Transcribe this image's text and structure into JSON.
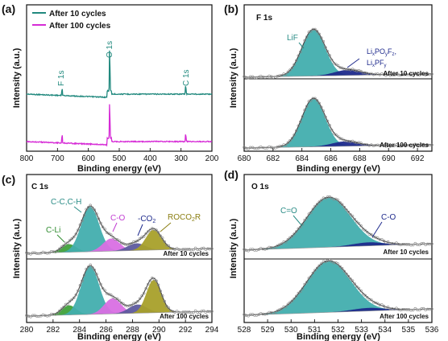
{
  "colors": {
    "teal": "#21897e",
    "magenta": "#d62bd6",
    "lif": "#42aeae",
    "pf": "#1e2a8c",
    "c_li": "#3fa13a",
    "cc": "#42aeae",
    "co": "#d96fe3",
    "co2": "#5d5a9e",
    "roco2r": "#a8a02a",
    "c_eq_o": "#42aeae",
    "c_o_blue": "#1e2a8c",
    "fit": "#444444",
    "raw": "#888888",
    "label_teal": "#2a8c86",
    "label_blue": "#1e2a8c",
    "label_green": "#2e8b2e",
    "label_magenta": "#c13bd2",
    "label_olive": "#8a7e12"
  },
  "chart_data": [
    {
      "panel": "(a)",
      "type": "line",
      "xlabel": "Binding energy (eV)",
      "ylabel": "Intensity (a.u.)",
      "xlim": [
        800,
        200
      ],
      "xticks": [
        800,
        700,
        600,
        500,
        400,
        300,
        200
      ],
      "legend_position": "top-left",
      "series": [
        {
          "name": "After 10 cycles",
          "color": "teal",
          "peaks": [
            {
              "label": "F 1s",
              "x": 685,
              "height": 0.1
            },
            {
              "label": "O 1s",
              "x": 531,
              "height": 0.62
            },
            {
              "label": "C 1s",
              "x": 285,
              "height": 0.12
            }
          ]
        },
        {
          "name": "After 100 cycles",
          "color": "magenta",
          "peaks": [
            {
              "label": "",
              "x": 685,
              "height": 0.12
            },
            {
              "label": "",
              "x": 531,
              "height": 0.55
            },
            {
              "label": "",
              "x": 285,
              "height": 0.11
            }
          ]
        }
      ],
      "peak_labels": [
        "F 1s",
        "O 1s",
        "C 1s"
      ]
    },
    {
      "panel": "(b)",
      "type": "area",
      "inset_title": "F 1s",
      "xlabel": "Binding energy (eV)",
      "ylabel": "Intensity (a.u.)",
      "xlim": [
        680,
        693
      ],
      "xticks": [
        680,
        682,
        684,
        686,
        688,
        690,
        692
      ],
      "spectra": [
        {
          "label": "After 10 cycles",
          "components": [
            {
              "name": "LiF",
              "center": 684.8,
              "fwhm": 1.9,
              "height": 1.0,
              "color": "lif"
            },
            {
              "name": "LixPOyFz, LixPFy",
              "center": 687.2,
              "fwhm": 2.2,
              "height": 0.12,
              "color": "pf"
            }
          ]
        },
        {
          "label": "After 100 cycles",
          "components": [
            {
              "name": "LiF",
              "center": 684.8,
              "fwhm": 1.9,
              "height": 1.0,
              "color": "lif"
            },
            {
              "name": "LixPOyFz, LixPFy",
              "center": 687.0,
              "fwhm": 2.2,
              "height": 0.1,
              "color": "pf"
            }
          ]
        }
      ]
    },
    {
      "panel": "(c)",
      "type": "area",
      "inset_title": "C 1s",
      "xlabel": "Binding energy (eV)",
      "ylabel": "Intensity (a.u.)",
      "xlim": [
        280,
        294
      ],
      "xticks": [
        280,
        282,
        284,
        286,
        288,
        290,
        292,
        294
      ],
      "spectra": [
        {
          "label": "After 10 cycles",
          "components": [
            {
              "name": "C-Li",
              "center": 283.2,
              "fwhm": 1.3,
              "height": 0.18,
              "color": "c_li"
            },
            {
              "name": "C-C,C-H",
              "center": 284.8,
              "fwhm": 1.6,
              "height": 1.0,
              "color": "cc"
            },
            {
              "name": "C-O",
              "center": 286.4,
              "fwhm": 1.5,
              "height": 0.28,
              "color": "co"
            },
            {
              "name": "-CO2",
              "center": 288.3,
              "fwhm": 1.6,
              "height": 0.16,
              "color": "co2"
            },
            {
              "name": "ROCO2R",
              "center": 289.6,
              "fwhm": 1.4,
              "height": 0.45,
              "color": "roco2r"
            }
          ]
        },
        {
          "label": "After 100 cycles",
          "components": [
            {
              "name": "C-Li",
              "center": 283.2,
              "fwhm": 1.3,
              "height": 0.2,
              "color": "c_li"
            },
            {
              "name": "C-C,C-H",
              "center": 284.8,
              "fwhm": 1.6,
              "height": 1.0,
              "color": "cc"
            },
            {
              "name": "C-O",
              "center": 286.5,
              "fwhm": 1.5,
              "height": 0.32,
              "color": "co"
            },
            {
              "name": "-CO2",
              "center": 288.4,
              "fwhm": 1.6,
              "height": 0.18,
              "color": "co2"
            },
            {
              "name": "ROCO2R",
              "center": 289.6,
              "fwhm": 1.3,
              "height": 0.68,
              "color": "roco2r"
            }
          ]
        }
      ]
    },
    {
      "panel": "(d)",
      "type": "area",
      "inset_title": "O 1s",
      "xlabel": "Binding energy (eV)",
      "ylabel": "Intensity (a.u.)",
      "xlim": [
        528,
        536
      ],
      "xticks": [
        528,
        529,
        530,
        531,
        532,
        533,
        534,
        535,
        536
      ],
      "spectra": [
        {
          "label": "After 10 cycles",
          "components": [
            {
              "name": "C=O",
              "center": 531.6,
              "fwhm": 2.2,
              "height": 1.0,
              "color": "c_eq_o"
            },
            {
              "name": "C-O",
              "center": 533.3,
              "fwhm": 1.6,
              "height": 0.07,
              "color": "c_o_blue"
            }
          ]
        },
        {
          "label": "After 100 cycles",
          "components": [
            {
              "name": "C=O",
              "center": 531.6,
              "fwhm": 2.2,
              "height": 1.0,
              "color": "c_eq_o"
            },
            {
              "name": "C-O",
              "center": 533.3,
              "fwhm": 1.6,
              "height": 0.06,
              "color": "c_o_blue"
            }
          ]
        }
      ]
    }
  ],
  "labels": {
    "panel_a": "(a)",
    "panel_b": "(b)",
    "panel_c": "(c)",
    "panel_d": "(d)",
    "legend_10": "After 10 cycles",
    "legend_100": "After 100 cycles",
    "f1s": "F 1s",
    "o1s": "O 1s",
    "c1s": "C 1s",
    "lif": "LiF",
    "lipof_main": "Li",
    "lipof_sub1": "x",
    "lipof_po": "PO",
    "lipof_sub2": "y",
    "lipof_f": "F",
    "lipof_sub3": "z",
    "lipof_comma": ",",
    "lipf_main": "Li",
    "lipf_sub1": "x",
    "lipf_pf": "PF",
    "lipf_sub2": "y",
    "cli": "C-Li",
    "cc": "C-C,C-H",
    "co": "C-O",
    "co2_pre": "-CO",
    "co2_sub": "2",
    "roco_pre": "ROCO",
    "roco_sub": "2",
    "roco_post": "R",
    "ceqo": "C=O",
    "co_d": "C-O",
    "after10": "After 10 cycles",
    "after100": "After 100 cycles",
    "xlabel": "Binding energy (eV)",
    "ylabel": "Intensity (a.u.)"
  }
}
